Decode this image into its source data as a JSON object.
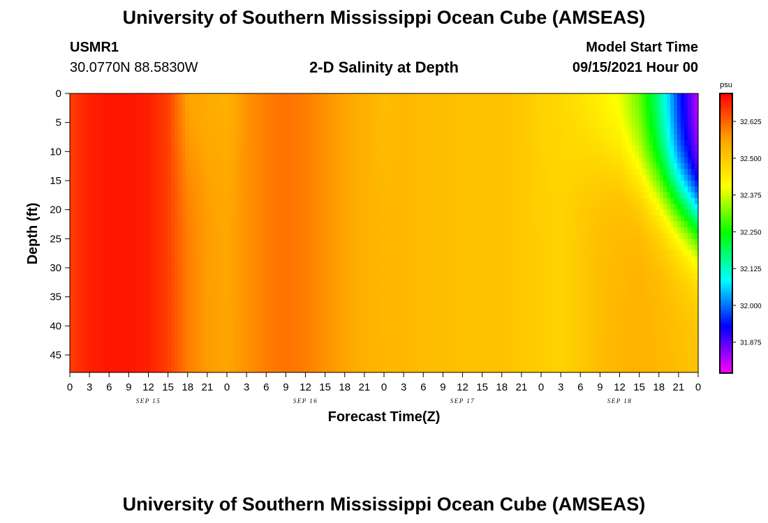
{
  "header": {
    "title": "University of Southern Mississippi Ocean Cube (AMSEAS)",
    "station": "USMR1",
    "coordinates": "30.0770N  88.5830W",
    "plot_title": "2-D Salinity at Depth",
    "start_time_label": "Model Start Time",
    "start_time_value": "09/15/2021 Hour 00"
  },
  "footer": {
    "title": "University of Southern Mississippi Ocean Cube (AMSEAS)"
  },
  "colorbar": {
    "unit": "psu",
    "range": [
      31.77,
      32.72
    ],
    "ticks": [
      32.625,
      32.5,
      32.375,
      32.25,
      32.125,
      32.0,
      31.875
    ],
    "tick_labels": [
      "32.625",
      "32.500",
      "32.375",
      "32.250",
      "32.125",
      "32.000",
      "31.875"
    ],
    "colors": [
      "#ff00ff",
      "#0000ff",
      "#00ffff",
      "#00ff00",
      "#ffff00",
      "#ffa500",
      "#ff0000"
    ]
  },
  "chart_data": {
    "type": "heatmap",
    "title": "2-D Salinity at Depth",
    "xlabel": "Forecast Time(Z)",
    "ylabel": "Depth (ft)",
    "xlim": [
      0,
      96
    ],
    "ylim": [
      48,
      0
    ],
    "x_tick_labels": [
      "0",
      "3",
      "6",
      "9",
      "12",
      "15",
      "18",
      "21",
      "0",
      "3",
      "6",
      "9",
      "12",
      "15",
      "18",
      "21",
      "0",
      "3",
      "6",
      "9",
      "12",
      "15",
      "18",
      "21",
      "0",
      "3",
      "6",
      "9",
      "12",
      "15",
      "18",
      "21",
      "0"
    ],
    "y_ticks": [
      0,
      5,
      10,
      15,
      20,
      25,
      30,
      35,
      40,
      45
    ],
    "date_labels": [
      {
        "label": "SEP 15",
        "hour": 12
      },
      {
        "label": "SEP 16",
        "hour": 36
      },
      {
        "label": "SEP 17",
        "hour": 60
      },
      {
        "label": "SEP 18",
        "hour": 84
      }
    ],
    "time_hours": [
      0,
      3,
      6,
      9,
      12,
      15,
      18,
      21,
      24,
      27,
      30,
      33,
      36,
      39,
      42,
      45,
      48,
      51,
      54,
      57,
      60,
      63,
      66,
      69,
      72,
      75,
      78,
      81,
      84,
      87,
      90,
      93,
      96
    ],
    "surface_salinity": [
      32.66,
      32.69,
      32.7,
      32.7,
      32.69,
      32.66,
      32.56,
      32.55,
      32.54,
      32.58,
      32.6,
      32.61,
      32.6,
      32.58,
      32.56,
      32.54,
      32.52,
      32.53,
      32.52,
      32.52,
      32.51,
      32.51,
      32.51,
      32.5,
      32.48,
      32.47,
      32.45,
      32.42,
      32.38,
      32.3,
      32.15,
      31.95,
      31.8
    ],
    "deep_salinity_z45": [
      32.66,
      32.69,
      32.7,
      32.7,
      32.69,
      32.66,
      32.6,
      32.57,
      32.56,
      32.58,
      32.6,
      32.61,
      32.6,
      32.58,
      32.56,
      32.54,
      32.53,
      32.53,
      32.52,
      32.52,
      32.51,
      32.51,
      32.51,
      32.5,
      32.49,
      32.48,
      32.5,
      32.52,
      32.53,
      32.54,
      32.53,
      32.52,
      32.51
    ]
  }
}
